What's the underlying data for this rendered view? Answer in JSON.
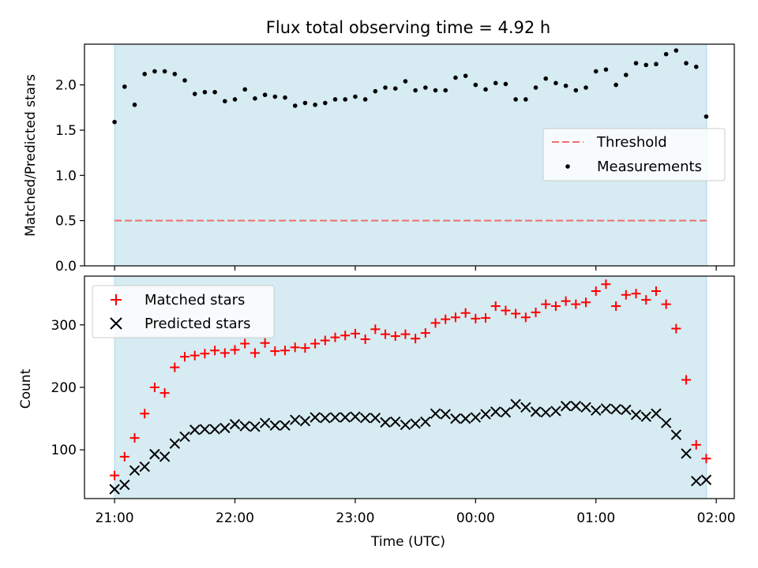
{
  "chart_data": [
    {
      "type": "scatter",
      "title": "Flux total observing time = 4.92 h",
      "ylabel": "Matched/Predicted stars",
      "ylim": [
        0,
        2.45
      ],
      "yticks": [
        0.0,
        0.5,
        1.0,
        1.5,
        2.0
      ],
      "ytick_labels": [
        "0.0",
        "0.5",
        "1.0",
        "1.5",
        "2.0"
      ],
      "shaded_span": {
        "from_hours": 0,
        "to_hours": 4.92,
        "color": "#add8e6"
      },
      "legend_position": "right",
      "legend": {
        "threshold": "Threshold",
        "measurements": "Measurements"
      },
      "threshold": {
        "value": 0.5,
        "color": "#f06e6e"
      },
      "series": [
        {
          "name": "Measurements",
          "marker": "dot",
          "color": "#000000",
          "x": [
            "21:00",
            "21:05",
            "21:10",
            "21:15",
            "21:20",
            "21:25",
            "21:30",
            "21:35",
            "21:40",
            "21:45",
            "21:50",
            "21:55",
            "22:00",
            "22:05",
            "22:10",
            "22:15",
            "22:20",
            "22:25",
            "22:30",
            "22:35",
            "22:40",
            "22:45",
            "22:50",
            "22:55",
            "23:00",
            "23:05",
            "23:10",
            "23:15",
            "23:20",
            "23:25",
            "23:30",
            "23:35",
            "23:40",
            "23:45",
            "23:50",
            "23:55",
            "00:00",
            "00:05",
            "00:10",
            "00:15",
            "00:20",
            "00:25",
            "00:30",
            "00:35",
            "00:40",
            "00:45",
            "00:50",
            "00:55",
            "01:00",
            "01:05",
            "01:10",
            "01:15",
            "01:20",
            "01:25",
            "01:30",
            "01:35",
            "01:40",
            "01:45",
            "01:50",
            "01:55"
          ],
          "y": [
            1.59,
            1.98,
            1.78,
            2.12,
            2.15,
            2.15,
            2.12,
            2.05,
            1.9,
            1.92,
            1.92,
            1.82,
            1.84,
            1.95,
            1.85,
            1.89,
            1.87,
            1.86,
            1.77,
            1.8,
            1.78,
            1.8,
            1.84,
            1.84,
            1.87,
            1.84,
            1.93,
            1.97,
            1.96,
            2.04,
            1.94,
            1.97,
            1.94,
            1.94,
            2.08,
            2.1,
            2.0,
            1.95,
            2.02,
            2.01,
            1.84,
            1.84,
            1.97,
            2.07,
            2.02,
            1.99,
            1.94,
            1.97,
            2.15,
            2.17,
            2.0,
            2.11,
            2.24,
            2.22,
            2.23,
            2.34,
            2.38,
            2.24,
            2.2,
            1.65
          ]
        }
      ]
    },
    {
      "type": "scatter",
      "ylabel": "Count",
      "xlabel": "Time (UTC)",
      "ylim": [
        22,
        378
      ],
      "yticks": [
        100,
        200,
        300
      ],
      "ytick_labels": [
        "100",
        "200",
        "300"
      ],
      "xtick_labels": [
        "21:00",
        "22:00",
        "23:00",
        "00:00",
        "01:00",
        "02:00"
      ],
      "xlim_hours": [
        -0.25,
        5.15
      ],
      "shaded_span": {
        "from_hours": 0,
        "to_hours": 4.92,
        "color": "#add8e6"
      },
      "legend_position": "top-left",
      "series": [
        {
          "name": "Matched stars",
          "marker": "plus",
          "color": "#ff0000",
          "x": [
            "21:00",
            "21:05",
            "21:10",
            "21:15",
            "21:20",
            "21:25",
            "21:30",
            "21:35",
            "21:40",
            "21:45",
            "21:50",
            "21:55",
            "22:00",
            "22:05",
            "22:10",
            "22:15",
            "22:20",
            "22:25",
            "22:30",
            "22:35",
            "22:40",
            "22:45",
            "22:50",
            "22:55",
            "23:00",
            "23:05",
            "23:10",
            "23:15",
            "23:20",
            "23:25",
            "23:30",
            "23:35",
            "23:40",
            "23:45",
            "23:50",
            "23:55",
            "00:00",
            "00:05",
            "00:10",
            "00:15",
            "00:20",
            "00:25",
            "00:30",
            "00:35",
            "00:40",
            "00:45",
            "00:50",
            "00:55",
            "01:00",
            "01:05",
            "01:10",
            "01:15",
            "01:20",
            "01:25",
            "01:30",
            "01:35",
            "01:40",
            "01:45",
            "01:50",
            "01:55"
          ],
          "y": [
            59,
            89,
            119,
            158,
            200,
            191,
            232,
            249,
            251,
            254,
            259,
            255,
            260,
            270,
            255,
            271,
            258,
            259,
            264,
            263,
            270,
            275,
            280,
            283,
            286,
            277,
            293,
            285,
            282,
            285,
            278,
            287,
            303,
            309,
            312,
            319,
            310,
            311,
            330,
            323,
            318,
            312,
            320,
            333,
            330,
            338,
            333,
            336,
            354,
            365,
            330,
            348,
            350,
            340,
            354,
            333,
            294,
            212,
            108,
            86
          ]
        },
        {
          "name": "Predicted stars",
          "marker": "x",
          "color": "#000000",
          "x": [
            "21:00",
            "21:05",
            "21:10",
            "21:15",
            "21:20",
            "21:25",
            "21:30",
            "21:35",
            "21:40",
            "21:45",
            "21:50",
            "21:55",
            "22:00",
            "22:05",
            "22:10",
            "22:15",
            "22:20",
            "22:25",
            "22:30",
            "22:35",
            "22:40",
            "22:45",
            "22:50",
            "22:55",
            "23:00",
            "23:05",
            "23:10",
            "23:15",
            "23:20",
            "23:25",
            "23:30",
            "23:35",
            "23:40",
            "23:45",
            "23:50",
            "23:55",
            "00:00",
            "00:05",
            "00:10",
            "00:15",
            "00:20",
            "00:25",
            "00:30",
            "00:35",
            "00:40",
            "00:45",
            "00:50",
            "00:55",
            "01:00",
            "01:05",
            "01:10",
            "01:15",
            "01:20",
            "01:25",
            "01:30",
            "01:35",
            "01:40",
            "01:45",
            "01:50",
            "01:55"
          ],
          "y": [
            37,
            44,
            67,
            73,
            93,
            89,
            110,
            121,
            132,
            133,
            133,
            135,
            141,
            138,
            137,
            143,
            139,
            139,
            148,
            146,
            152,
            151,
            152,
            152,
            153,
            151,
            151,
            144,
            145,
            140,
            142,
            145,
            158,
            157,
            150,
            150,
            152,
            157,
            161,
            160,
            173,
            168,
            161,
            160,
            162,
            170,
            170,
            168,
            163,
            166,
            165,
            164,
            156,
            153,
            158,
            143,
            124,
            94,
            50,
            52
          ]
        }
      ]
    }
  ]
}
